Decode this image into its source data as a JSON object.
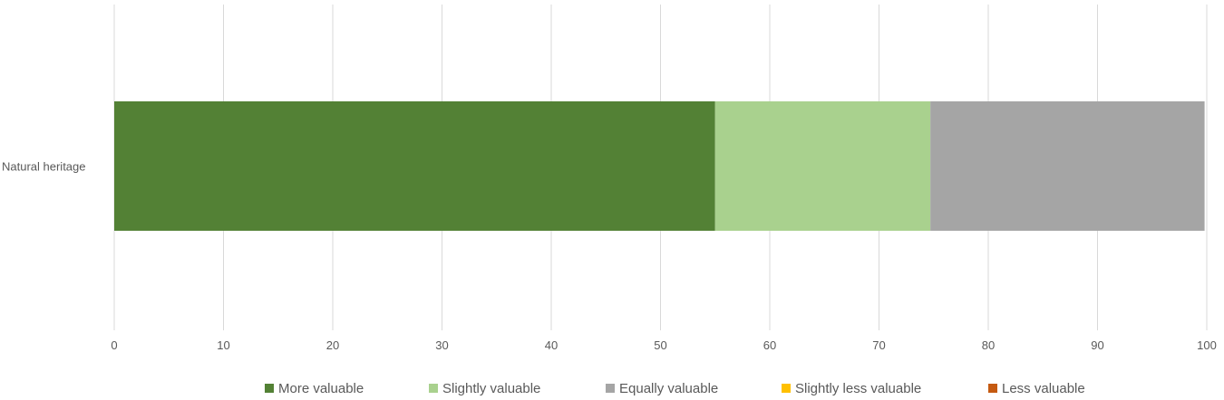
{
  "chart_data": {
    "type": "bar",
    "orientation": "horizontal",
    "stacked": true,
    "categories": [
      "Natural heritage"
    ],
    "series": [
      {
        "name": "More valuable",
        "values": [
          55
        ],
        "color": "#538135"
      },
      {
        "name": "Slightly valuable",
        "values": [
          19.7
        ],
        "color": "#A9D18E"
      },
      {
        "name": "Equally valuable",
        "values": [
          25.1
        ],
        "color": "#A5A5A5"
      },
      {
        "name": "Slightly less valuable",
        "values": [
          0
        ],
        "color": "#FFC000"
      },
      {
        "name": "Less valuable",
        "values": [
          0
        ],
        "color": "#C55A11"
      }
    ],
    "xlim": [
      0,
      100
    ],
    "xticks": [
      "0",
      "10",
      "20",
      "30",
      "40",
      "50",
      "60",
      "70",
      "80",
      "90",
      "100"
    ],
    "grid": true,
    "legend_position": "bottom"
  }
}
